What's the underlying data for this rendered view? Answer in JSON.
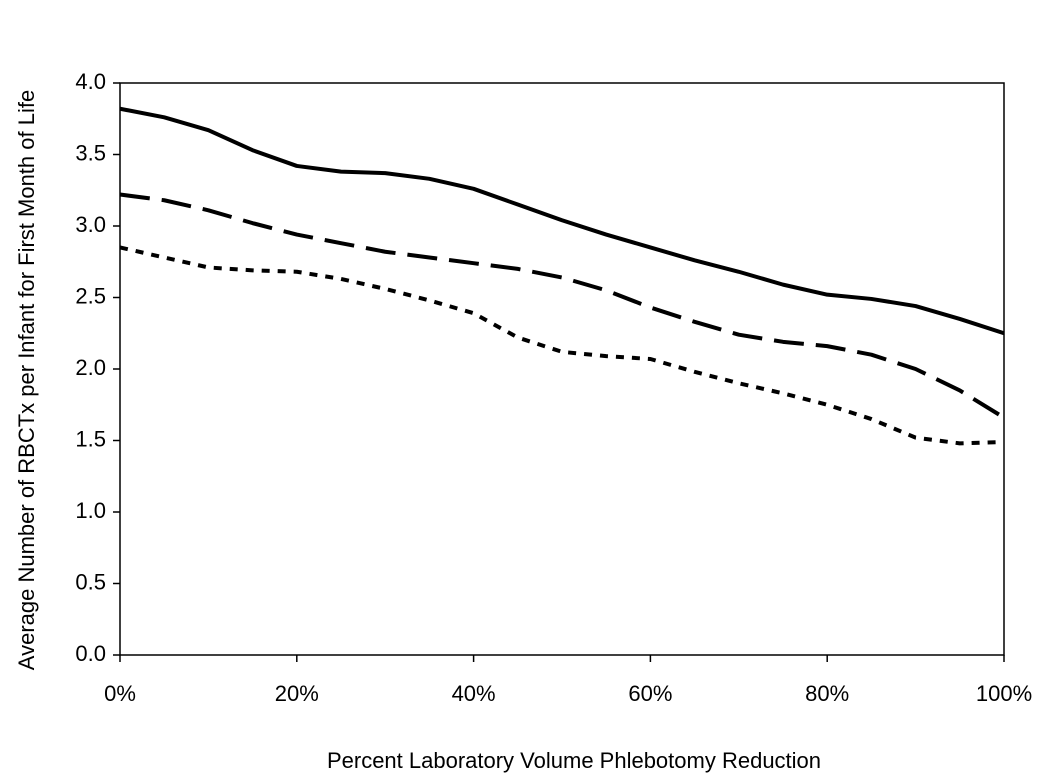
{
  "chart_data": {
    "type": "line",
    "x_label": "Percent Laboratory Volume Phlebotomy Reduction",
    "y_label": "Average Number of RBCTx per Infant for First Month of Life",
    "x": [
      0,
      5,
      10,
      15,
      20,
      25,
      30,
      35,
      40,
      45,
      50,
      55,
      60,
      65,
      70,
      75,
      80,
      85,
      90,
      95,
      100
    ],
    "series": [
      {
        "color": "#000000",
        "dash": "solid",
        "values": [
          3.82,
          3.76,
          3.67,
          3.53,
          3.42,
          3.38,
          3.37,
          3.33,
          3.26,
          3.15,
          3.04,
          2.94,
          2.85,
          2.76,
          2.68,
          2.59,
          2.52,
          2.49,
          2.44,
          2.35,
          2.25
        ]
      },
      {
        "color": "#000000",
        "dash": "dashed",
        "values": [
          3.22,
          3.18,
          3.11,
          3.02,
          2.94,
          2.88,
          2.82,
          2.78,
          2.74,
          2.7,
          2.64,
          2.55,
          2.43,
          2.33,
          2.24,
          2.19,
          2.16,
          2.1,
          2.0,
          1.85,
          1.66
        ]
      },
      {
        "color": "#000000",
        "dash": "dotted",
        "values": [
          2.85,
          2.78,
          2.71,
          2.69,
          2.68,
          2.63,
          2.56,
          2.48,
          2.39,
          2.22,
          2.12,
          2.09,
          2.07,
          1.98,
          1.9,
          1.83,
          1.75,
          1.65,
          1.52,
          1.48,
          1.49
        ]
      }
    ],
    "xlim": [
      0,
      100
    ],
    "xticks": [
      {
        "value": 0,
        "label": "0%"
      },
      {
        "value": 20,
        "label": "20%"
      },
      {
        "value": 40,
        "label": "40%"
      },
      {
        "value": 60,
        "label": "60%"
      },
      {
        "value": 80,
        "label": "80%"
      },
      {
        "value": 100,
        "label": "100%"
      }
    ],
    "ylim": [
      0,
      4
    ],
    "yticks": [
      {
        "value": 0,
        "label": "0.0"
      },
      0.5,
      {
        "value": 1,
        "label": "1.0"
      },
      1.5,
      {
        "value": 2,
        "label": "2.0"
      },
      2.5,
      {
        "value": 3,
        "label": "3.0"
      },
      3.5,
      {
        "value": 4,
        "label": "4.0"
      }
    ],
    "grid": false
  }
}
